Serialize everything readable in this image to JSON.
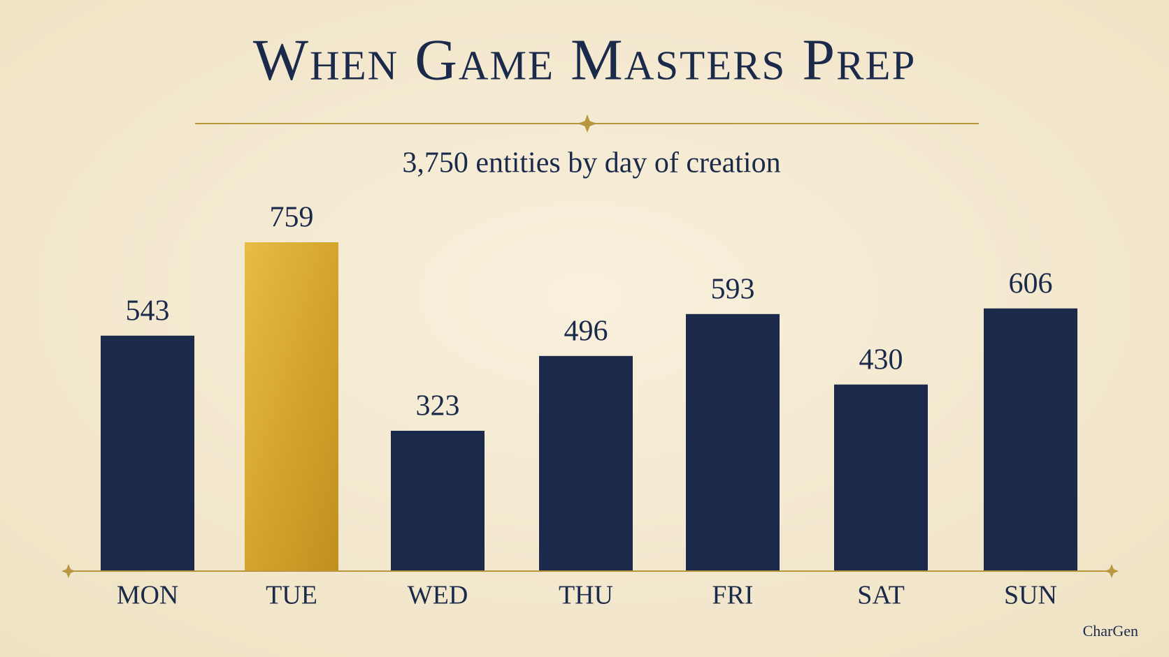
{
  "chart_data": {
    "type": "bar",
    "title": "When Game Masters Prep",
    "subtitle": "3,750 entities by day of creation",
    "categories": [
      "MON",
      "TUE",
      "WED",
      "THU",
      "FRI",
      "SAT",
      "SUN"
    ],
    "values": [
      543,
      759,
      323,
      496,
      593,
      430,
      606
    ],
    "colors": [
      "#1b2a4a",
      "#d4a52c",
      "#1b2a4a",
      "#1b2a4a",
      "#1b2a4a",
      "#1b2a4a",
      "#1b2a4a"
    ],
    "watermark": "CharGen"
  }
}
